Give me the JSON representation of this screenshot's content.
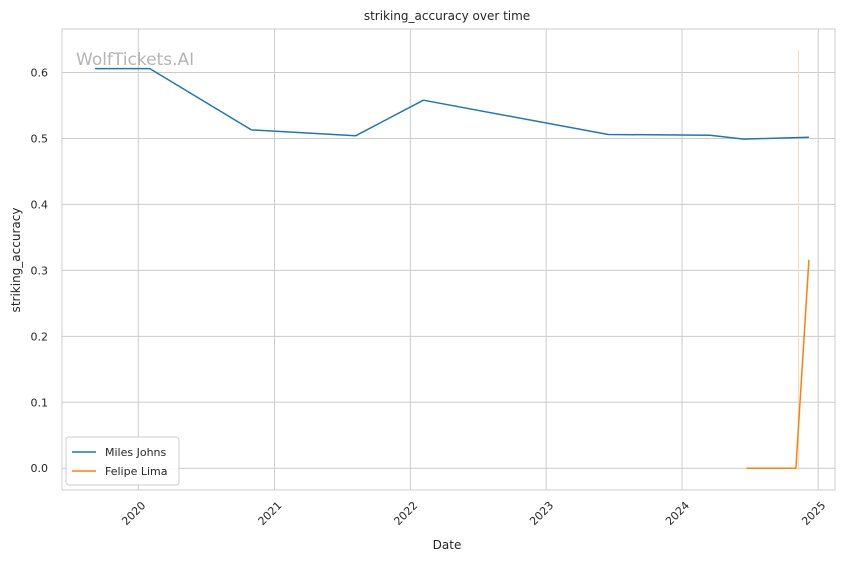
{
  "chart_data": {
    "type": "line",
    "title": "striking_accuracy over time",
    "xlabel": "Date",
    "ylabel": "striking_accuracy",
    "watermark": "WolfTickets.AI",
    "xlim": [
      "2019-06-10",
      "2025-02-15"
    ],
    "ylim": [
      -0.033,
      0.666
    ],
    "x_ticks": [
      "2020",
      "2021",
      "2022",
      "2023",
      "2024",
      "2025"
    ],
    "y_ticks": [
      "0.0",
      "0.1",
      "0.2",
      "0.3",
      "0.4",
      "0.5",
      "0.6"
    ],
    "grid": true,
    "legend": {
      "position": "lower-left"
    },
    "series": [
      {
        "name": "Miles Johns",
        "color": "#1f77b4",
        "points": [
          {
            "x": "2019-09-07",
            "y": 0.606
          },
          {
            "x": "2020-02-01",
            "y": 0.606
          },
          {
            "x": "2020-10-31",
            "y": 0.513
          },
          {
            "x": "2021-08-07",
            "y": 0.504
          },
          {
            "x": "2022-02-05",
            "y": 0.558
          },
          {
            "x": "2023-06-17",
            "y": 0.506
          },
          {
            "x": "2024-03-16",
            "y": 0.505
          },
          {
            "x": "2024-06-15",
            "y": 0.499
          },
          {
            "x": "2024-12-07",
            "y": 0.502
          }
        ]
      },
      {
        "name": "Felipe Lima",
        "color": "#ff7f0e",
        "points": [
          {
            "x": "2024-06-22",
            "y": 0.0
          },
          {
            "x": "2024-11-02",
            "y": 0.0
          },
          {
            "x": "2024-12-07",
            "y": 0.316
          }
        ]
      }
    ]
  }
}
